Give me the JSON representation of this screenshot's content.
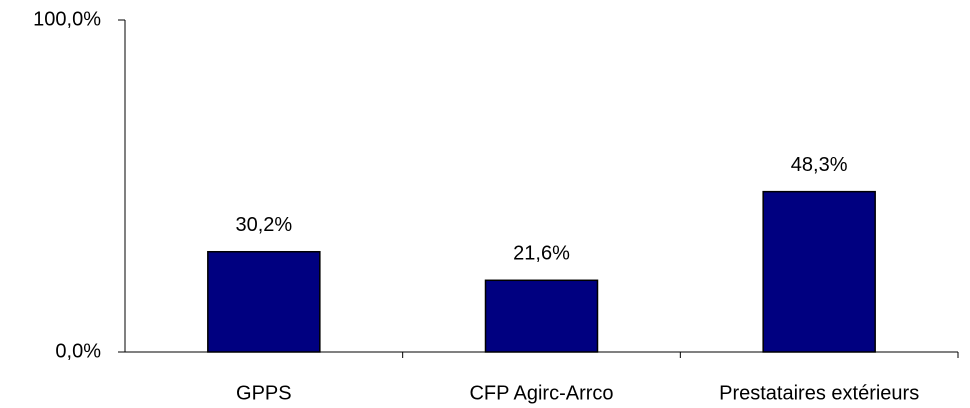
{
  "chart_data": {
    "type": "bar",
    "categories": [
      "GPPS",
      "CFP Agirc-Arrco",
      "Prestataires extérieurs"
    ],
    "values": [
      30.2,
      21.6,
      48.3
    ],
    "value_labels": [
      "30,2%",
      "21,6%",
      "48,3%"
    ],
    "color": "#000080",
    "ylim": [
      0,
      100
    ],
    "yticks": [
      {
        "value": 0,
        "label": "0,0%"
      },
      {
        "value": 100,
        "label": "100,0%"
      }
    ],
    "grid": false
  }
}
